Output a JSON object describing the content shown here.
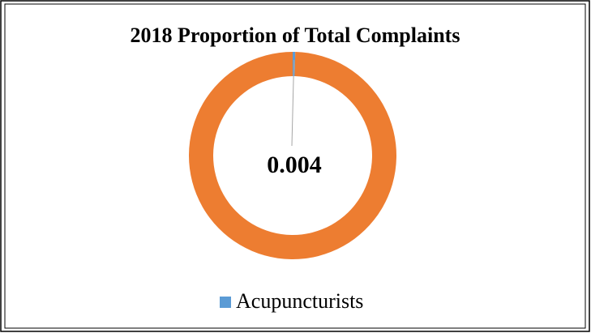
{
  "chart_data": {
    "type": "donut",
    "title": "2018 Proportion of Total Complaints",
    "categories": [
      "Acupuncturists",
      null
    ],
    "values": [
      0.004,
      0.996
    ],
    "colors": [
      "#5b9bd5",
      "#ed7d31"
    ],
    "legend": "bottom"
  }
}
